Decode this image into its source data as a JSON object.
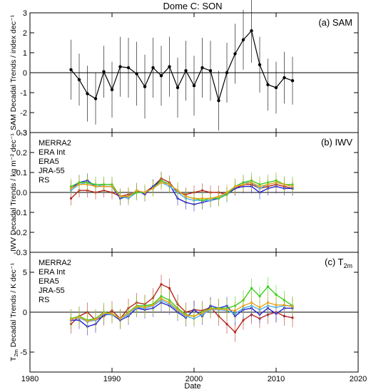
{
  "figure_title": "Dome C: SON",
  "x_axis": {
    "label": "Date",
    "range": [
      1980,
      2020
    ],
    "ticks": [
      1980,
      1990,
      2000,
      2010,
      2020
    ]
  },
  "colors": {
    "SAM": "#000000",
    "MERRA2": "#b5261e",
    "ERA Int": "#2020d8",
    "ERA5": "#4fb0f0",
    "JRA-55": "#3ccc1e",
    "RS": "#e6a41c"
  },
  "chart_data": [
    {
      "type": "line",
      "panel_label": "(a) SAM",
      "ylabel": "SAM Decadal Trends / index dec⁻¹",
      "ylim": [
        -3,
        3
      ],
      "yticks": [
        -3,
        -2,
        -1,
        0,
        1,
        2,
        3
      ],
      "xlim": [
        1980,
        2020
      ],
      "series": [
        {
          "key": "SAM",
          "x": [
            1985,
            1986,
            1987,
            1988,
            1989,
            1990,
            1991,
            1992,
            1993,
            1994,
            1995,
            1996,
            1997,
            1998,
            1999,
            2000,
            2001,
            2002,
            2003,
            2004,
            2005,
            2006,
            2007,
            2008,
            2009,
            2010,
            2011,
            2012
          ],
          "values": [
            0.15,
            -0.35,
            -1.05,
            -1.3,
            0.05,
            -0.85,
            0.3,
            0.25,
            -0.05,
            -0.7,
            0.25,
            -0.15,
            0.3,
            -0.75,
            0.1,
            -0.65,
            0.25,
            0.1,
            -1.4,
            0.0,
            0.95,
            1.65,
            2.1,
            0.4,
            -0.6,
            -0.75,
            -0.25,
            -0.4
          ],
          "err": [
            1.5,
            1.3,
            1.4,
            1.3,
            1.3,
            1.4,
            1.5,
            1.5,
            1.6,
            1.6,
            1.5,
            1.5,
            1.5,
            1.5,
            1.5,
            1.5,
            1.5,
            1.5,
            1.5,
            1.5,
            1.5,
            1.5,
            1.6,
            1.4,
            1.3,
            1.3,
            1.3,
            1.2
          ]
        }
      ]
    },
    {
      "type": "line",
      "panel_label": "(b) IWV",
      "ylabel": "IWV Decadal Trends / kg m⁻² dec⁻¹",
      "ylim": [
        -0.3,
        0.3
      ],
      "yticks": [
        -0.3,
        -0.2,
        -0.1,
        0.0,
        0.1,
        0.2,
        0.3
      ],
      "ytick_labels": [
        "-0.3",
        "-0.2",
        "-0.1",
        "0.0",
        "0.1",
        "0.2",
        "0.3"
      ],
      "xlim": [
        1980,
        2020
      ],
      "legend": [
        "MERRA2",
        "ERA Int",
        "ERA5",
        "JRA-55",
        "RS"
      ],
      "series": [
        {
          "key": "MERRA2",
          "x": [
            1985,
            1986,
            1987,
            1988,
            1989,
            1990,
            1991,
            1992,
            1993,
            1994,
            1995,
            1996,
            1997,
            1998,
            1999,
            2000,
            2001,
            2002,
            2003,
            2004,
            2005,
            2006,
            2007,
            2008,
            2009,
            2010,
            2011,
            2012
          ],
          "values": [
            -0.03,
            0.01,
            0.01,
            0.0,
            0.01,
            0.0,
            -0.02,
            -0.01,
            0.0,
            0.0,
            0.03,
            0.07,
            0.05,
            0.0,
            -0.01,
            0.0,
            0.01,
            0.0,
            0.0,
            -0.01,
            0.02,
            0.04,
            0.04,
            0.02,
            0.03,
            0.04,
            0.03,
            0.02
          ],
          "err": 0.035
        },
        {
          "key": "ERA Int",
          "x": [
            1985,
            1986,
            1987,
            1988,
            1989,
            1990,
            1991,
            1992,
            1993,
            1994,
            1995,
            1996,
            1997,
            1998,
            1999,
            2000,
            2001,
            2002,
            2003,
            2004,
            2005,
            2006,
            2007,
            2008,
            2009,
            2010,
            2011,
            2012
          ],
          "values": [
            0.02,
            0.05,
            0.06,
            0.03,
            0.03,
            0.03,
            -0.03,
            -0.02,
            0.01,
            -0.01,
            0.03,
            0.06,
            0.04,
            -0.03,
            -0.05,
            -0.06,
            -0.05,
            -0.04,
            -0.03,
            -0.01,
            0.02,
            0.03,
            0.03,
            0.0,
            0.02,
            0.03,
            0.02,
            0.02
          ],
          "err": 0.035
        },
        {
          "key": "ERA5",
          "x": [
            1985,
            1986,
            1987,
            1988,
            1989,
            1990,
            1991,
            1992,
            1993,
            1994,
            1995,
            1996,
            1997,
            1998,
            1999,
            2000,
            2001,
            2002,
            2003,
            2004,
            2005,
            2006,
            2007,
            2008,
            2009,
            2010,
            2011,
            2012
          ],
          "values": [
            0.01,
            0.04,
            0.05,
            0.03,
            0.04,
            0.04,
            -0.02,
            -0.03,
            0.0,
            0.0,
            0.02,
            0.05,
            0.03,
            0.0,
            -0.03,
            -0.04,
            -0.04,
            -0.04,
            -0.02,
            -0.01,
            0.03,
            0.05,
            0.05,
            0.02,
            0.04,
            0.05,
            0.04,
            0.03
          ],
          "err": 0.035
        },
        {
          "key": "JRA-55",
          "x": [
            1985,
            1986,
            1987,
            1988,
            1989,
            1990,
            1991,
            1992,
            1993,
            1994,
            1995,
            1996,
            1997,
            1998,
            1999,
            2000,
            2001,
            2002,
            2003,
            2004,
            2005,
            2006,
            2007,
            2008,
            2009,
            2010,
            2011,
            2012
          ],
          "values": [
            0.03,
            0.05,
            0.05,
            0.04,
            0.04,
            0.04,
            -0.02,
            -0.02,
            0.0,
            0.0,
            0.02,
            0.06,
            0.04,
            0.01,
            -0.02,
            -0.03,
            -0.04,
            -0.03,
            -0.03,
            -0.01,
            0.03,
            0.05,
            0.06,
            0.04,
            0.05,
            0.06,
            0.04,
            0.04
          ],
          "err": 0.04
        },
        {
          "key": "RS",
          "x": [
            1985,
            1986,
            1987,
            1988,
            1989,
            1990,
            1991,
            1992,
            1993,
            1994,
            1995,
            1996,
            1997,
            1998,
            1999,
            2000,
            2001,
            2002,
            2003,
            2004,
            2005,
            2006,
            2007,
            2008,
            2009,
            2010,
            2011,
            2012
          ],
          "values": [
            0.02,
            0.04,
            0.04,
            0.03,
            0.03,
            0.03,
            -0.02,
            -0.02,
            0.01,
            0.0,
            0.02,
            0.05,
            0.04,
            0.01,
            -0.02,
            -0.03,
            -0.03,
            -0.03,
            -0.02,
            0.0,
            0.03,
            0.04,
            0.05,
            0.03,
            0.04,
            0.05,
            0.04,
            0.03
          ],
          "err": 0.04
        }
      ]
    },
    {
      "type": "line",
      "panel_label": "(c) T",
      "panel_label_sub": "2m",
      "ylabel": "T",
      "ylabel_sub": "2m",
      "ylabel_rest": " Decadal Trends / K dec⁻¹",
      "ylim": [
        -7.5,
        7.5
      ],
      "yticks": [
        -5,
        0,
        5
      ],
      "xlim": [
        1980,
        2020
      ],
      "legend": [
        "MERRA2",
        "ERA Int",
        "ERA5",
        "JRA-55",
        "RS"
      ],
      "series": [
        {
          "key": "MERRA2",
          "x": [
            1985,
            1986,
            1987,
            1988,
            1989,
            1990,
            1991,
            1992,
            1993,
            1994,
            1995,
            1996,
            1997,
            1998,
            1999,
            2000,
            2001,
            2002,
            2003,
            2004,
            2005,
            2006,
            2007,
            2008,
            2009,
            2010,
            2011,
            2012
          ],
          "values": [
            -1.5,
            -0.5,
            0.0,
            -1.0,
            -0.5,
            0.2,
            -0.8,
            0.5,
            1.2,
            1.0,
            1.8,
            3.5,
            3.0,
            1.0,
            0.0,
            0.3,
            0.2,
            0.6,
            -0.5,
            -1.5,
            -2.5,
            -1.0,
            -0.3,
            -0.8,
            -0.3,
            0.0,
            -0.5,
            -0.7
          ],
          "err": 1.2
        },
        {
          "key": "ERA Int",
          "x": [
            1985,
            1986,
            1987,
            1988,
            1989,
            1990,
            1991,
            1992,
            1993,
            1994,
            1995,
            1996,
            1997,
            1998,
            1999,
            2000,
            2001,
            2002,
            2003,
            2004,
            2005,
            2006,
            2007,
            2008,
            2009,
            2010,
            2011,
            2012
          ],
          "values": [
            -1.0,
            -1.0,
            -1.8,
            -1.5,
            -0.3,
            -0.3,
            -1.0,
            -0.5,
            0.5,
            0.3,
            0.5,
            1.2,
            0.8,
            0.0,
            -0.7,
            0.3,
            -0.5,
            0.8,
            0.5,
            0.8,
            -0.5,
            0.3,
            0.5,
            -0.3,
            0.5,
            -0.2,
            0.5,
            0.5
          ],
          "err": 1.1
        },
        {
          "key": "ERA5",
          "x": [
            1985,
            1986,
            1987,
            1988,
            1989,
            1990,
            1991,
            1992,
            1993,
            1994,
            1995,
            1996,
            1997,
            1998,
            1999,
            2000,
            2001,
            2002,
            2003,
            2004,
            2005,
            2006,
            2007,
            2008,
            2009,
            2010,
            2011,
            2012
          ],
          "values": [
            -0.8,
            -0.7,
            -1.2,
            -1.0,
            -0.2,
            -0.3,
            -0.8,
            -0.3,
            0.6,
            0.5,
            0.8,
            1.5,
            1.0,
            0.2,
            -0.5,
            -0.8,
            -0.3,
            0.3,
            0.3,
            0.2,
            -0.2,
            0.5,
            0.8,
            0.3,
            0.8,
            0.6,
            0.8,
            0.8
          ],
          "err": 1.1
        },
        {
          "key": "JRA-55",
          "x": [
            1985,
            1986,
            1987,
            1988,
            1989,
            1990,
            1991,
            1992,
            1993,
            1994,
            1995,
            1996,
            1997,
            1998,
            1999,
            2000,
            2001,
            2002,
            2003,
            2004,
            2005,
            2006,
            2007,
            2008,
            2009,
            2010,
            2011,
            2012
          ],
          "values": [
            -0.8,
            -0.5,
            -1.0,
            -0.8,
            0.0,
            -0.2,
            -0.8,
            0.0,
            0.8,
            0.8,
            1.0,
            2.0,
            1.5,
            0.5,
            -0.3,
            -0.5,
            0.0,
            0.5,
            0.5,
            0.5,
            0.8,
            1.5,
            3.0,
            2.0,
            3.2,
            2.2,
            1.5,
            0.8
          ],
          "err": 1.2
        },
        {
          "key": "RS",
          "x": [
            1985,
            1986,
            1987,
            1988,
            1989,
            1990,
            1991,
            1992,
            1993,
            1994,
            1995,
            1996,
            1997,
            1998,
            1999,
            2000,
            2001,
            2002,
            2003,
            2004,
            2005,
            2006,
            2007,
            2008,
            2009,
            2010,
            2011,
            2012
          ],
          "values": [
            -0.9,
            -0.6,
            -1.1,
            -0.9,
            -0.1,
            -0.2,
            -0.8,
            -0.1,
            0.7,
            0.6,
            0.9,
            1.7,
            1.2,
            0.3,
            -0.4,
            -0.5,
            -0.1,
            0.4,
            0.4,
            0.3,
            0.2,
            0.8,
            1.2,
            0.6,
            1.2,
            0.9,
            0.9,
            0.7
          ],
          "err": 1.2
        }
      ]
    }
  ]
}
